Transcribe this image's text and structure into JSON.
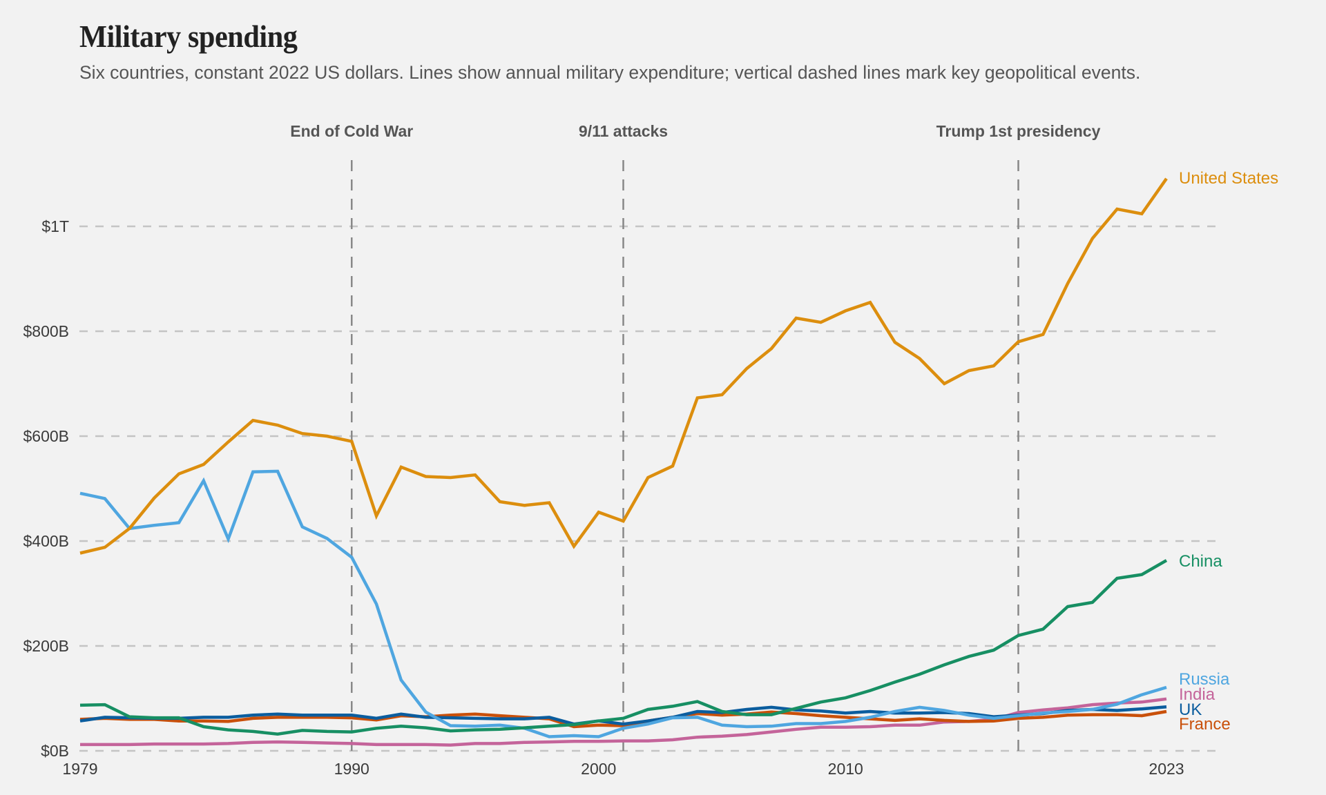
{
  "chart_data": {
    "type": "line",
    "title": "Military spending",
    "subtitle": "Six countries, constant 2022 US dollars. Lines show annual military expenditure; vertical dashed lines mark key geopolitical events.",
    "xlabel": "",
    "ylabel": "",
    "units": "billions of constant 2022 US dollars",
    "xlim": [
      1979,
      2023
    ],
    "ylim": [
      0,
      1100
    ],
    "x_ticks": [
      1979,
      1990,
      2000,
      2010,
      2023
    ],
    "x_tick_labels": [
      "1979",
      "1990",
      "2000",
      "2010",
      "2023"
    ],
    "y_ticks": [
      0,
      200,
      400,
      600,
      800,
      1000
    ],
    "y_tick_labels": [
      "$0B",
      "$200B",
      "$400B",
      "$600B",
      "$800B",
      "$1T"
    ],
    "grid": "horizontal dashed",
    "legend": "direct labels at line ends (right)",
    "annotations": [
      {
        "year": 1990,
        "label": "End of Cold War"
      },
      {
        "year": 2001,
        "label": "9/11 attacks"
      },
      {
        "year": 2017,
        "label": "Trump 1st presidency"
      }
    ],
    "x": [
      1979,
      1980,
      1981,
      1982,
      1983,
      1984,
      1985,
      1986,
      1987,
      1988,
      1989,
      1990,
      1991,
      1992,
      1993,
      1994,
      1995,
      1996,
      1997,
      1998,
      1999,
      2000,
      2001,
      2002,
      2003,
      2004,
      2005,
      2006,
      2007,
      2008,
      2009,
      2010,
      2011,
      2012,
      2013,
      2014,
      2015,
      2016,
      2017,
      2018,
      2019,
      2020,
      2021,
      2022,
      2023
    ],
    "series": [
      {
        "name": "United States",
        "color": "#dc8e0e",
        "values": [
          377,
          388,
          424,
          482,
          528,
          546,
          589,
          630,
          621,
          605,
          600,
          590,
          448,
          541,
          523,
          521,
          526,
          475,
          468,
          473,
          390,
          455,
          438,
          521,
          543,
          673,
          679,
          729,
          767,
          825,
          817,
          839,
          855,
          779,
          748,
          700,
          725,
          734,
          780,
          794,
          891,
          977,
          1033,
          1024,
          1091
        ]
      },
      {
        "name": "China",
        "color": "#178f63",
        "values": [
          87,
          88,
          65,
          63,
          63,
          46,
          40,
          37,
          32,
          39,
          37,
          36,
          43,
          47,
          44,
          38,
          40,
          41,
          44,
          47,
          50,
          57,
          62,
          79,
          85,
          94,
          75,
          69,
          69,
          81,
          93,
          101,
          115,
          131,
          146,
          164,
          180,
          192,
          220,
          232,
          275,
          283,
          329,
          336,
          363
        ]
      },
      {
        "name": "Russia",
        "color": "#4fa6e0",
        "values": [
          491,
          481,
          424,
          430,
          435,
          515,
          404,
          532,
          533,
          427,
          405,
          369,
          280,
          135,
          74,
          48,
          47,
          49,
          43,
          27,
          29,
          27,
          43,
          51,
          63,
          64,
          49,
          46,
          47,
          52,
          52,
          56,
          64,
          75,
          83,
          77,
          68,
          62,
          67,
          72,
          75,
          79,
          89,
          107,
          121
        ]
      },
      {
        "name": "India",
        "color": "#c4649a",
        "values": [
          12,
          12,
          12,
          13,
          13,
          13,
          14,
          16,
          17,
          16,
          15,
          14,
          12,
          12,
          12,
          11,
          14,
          14,
          16,
          17,
          18,
          18,
          19,
          19,
          21,
          26,
          28,
          31,
          36,
          41,
          45,
          45,
          46,
          49,
          49,
          55,
          56,
          60,
          73,
          78,
          82,
          88,
          91,
          93,
          99
        ]
      },
      {
        "name": "UK",
        "color": "#0b5d9e",
        "values": [
          57,
          64,
          63,
          62,
          62,
          64,
          64,
          68,
          70,
          68,
          68,
          68,
          62,
          70,
          64,
          63,
          62,
          61,
          61,
          64,
          51,
          57,
          51,
          57,
          64,
          75,
          73,
          79,
          83,
          78,
          76,
          72,
          75,
          72,
          72,
          73,
          71,
          65,
          68,
          71,
          77,
          79,
          77,
          80,
          84
        ]
      },
      {
        "name": "France",
        "color": "#c9500a",
        "values": [
          60,
          62,
          60,
          60,
          57,
          57,
          56,
          62,
          64,
          64,
          64,
          63,
          59,
          67,
          65,
          68,
          70,
          67,
          64,
          61,
          46,
          49,
          48,
          57,
          64,
          71,
          68,
          70,
          74,
          71,
          67,
          64,
          61,
          58,
          61,
          58,
          56,
          57,
          62,
          64,
          68,
          69,
          69,
          67,
          75
        ]
      }
    ]
  }
}
